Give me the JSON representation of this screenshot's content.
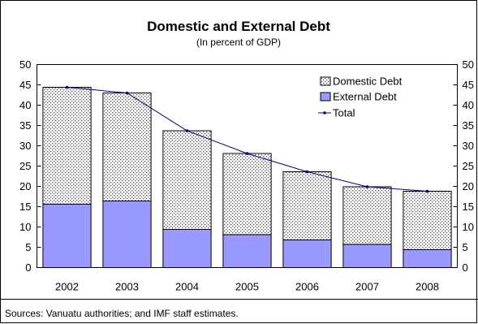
{
  "chart_data": {
    "type": "bar",
    "title": "Domestic and External Debt",
    "subtitle": "(In percent of GDP)",
    "categories": [
      "2002",
      "2003",
      "2004",
      "2005",
      "2006",
      "2007",
      "2008"
    ],
    "series": [
      {
        "name": "Domestic Debt",
        "kind": "stacked-bar",
        "pattern": "dotted",
        "color": "#d9d9d9",
        "values": [
          28.8,
          26.6,
          24.3,
          20.0,
          16.8,
          14.2,
          14.4
        ]
      },
      {
        "name": "External Debt",
        "kind": "stacked-bar",
        "color": "#9999ff",
        "values": [
          15.6,
          16.4,
          9.4,
          8.1,
          6.8,
          5.7,
          4.4
        ]
      },
      {
        "name": "Total",
        "kind": "line",
        "marker": "dot",
        "color": "#000080",
        "values": [
          44.4,
          43.0,
          33.7,
          28.1,
          23.6,
          19.9,
          18.8
        ]
      }
    ],
    "ylim": [
      0,
      50
    ],
    "yticks": [
      0,
      5,
      10,
      15,
      20,
      25,
      30,
      35,
      40,
      45,
      50
    ],
    "secondary_yaxis": true,
    "grid": false,
    "legend_position": "top-right"
  },
  "footer": {
    "source": "Sources: Vanuatu authorities; and IMF staff estimates."
  }
}
